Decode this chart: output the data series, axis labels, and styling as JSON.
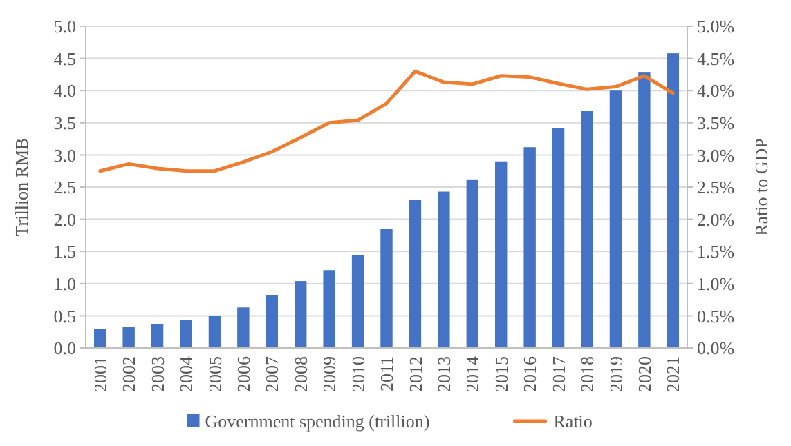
{
  "chart_data": {
    "type": "bar",
    "ylabel": "Trillion RMB",
    "y2label": "Ratio to GDP",
    "categories": [
      "2001",
      "2002",
      "2003",
      "2004",
      "2005",
      "2006",
      "2007",
      "2008",
      "2009",
      "2010",
      "2011",
      "2012",
      "2013",
      "2014",
      "2015",
      "2016",
      "2017",
      "2018",
      "2019",
      "2020",
      "2021"
    ],
    "series": [
      {
        "name": "Government spending (trillion)",
        "color": "#4472c4",
        "values": [
          0.29,
          0.33,
          0.37,
          0.44,
          0.5,
          0.63,
          0.82,
          1.04,
          1.21,
          1.44,
          1.85,
          2.3,
          2.43,
          2.62,
          2.9,
          3.12,
          3.42,
          3.68,
          4.0,
          4.28,
          4.58
        ]
      },
      {
        "name": "Ratio",
        "type": "line",
        "axis": "y2",
        "color": "#ed7d31",
        "values": [
          2.75,
          2.86,
          2.79,
          2.75,
          2.75,
          2.89,
          3.05,
          3.27,
          3.5,
          3.54,
          3.8,
          4.3,
          4.13,
          4.1,
          4.23,
          4.21,
          4.11,
          4.02,
          4.06,
          4.23,
          3.96
        ]
      }
    ],
    "ylim": [
      0,
      5
    ],
    "yticks": [
      {
        "value": 0,
        "label": "0.0"
      },
      {
        "value": 0.5,
        "label": "0.5"
      },
      {
        "value": 1,
        "label": "1.0"
      },
      {
        "value": 1.5,
        "label": "1.5"
      },
      {
        "value": 2,
        "label": "2.0"
      },
      {
        "value": 2.5,
        "label": "2.5"
      },
      {
        "value": 3,
        "label": "3.0"
      },
      {
        "value": 3.5,
        "label": "3.5"
      },
      {
        "value": 4,
        "label": "4.0"
      },
      {
        "value": 4.5,
        "label": "4.5"
      },
      {
        "value": 5,
        "label": "5.0"
      }
    ],
    "y2lim": [
      0,
      5
    ],
    "y2ticks": [
      {
        "value": 0,
        "label": "0.0%"
      },
      {
        "value": 0.5,
        "label": "0.5%"
      },
      {
        "value": 1,
        "label": "1.0%"
      },
      {
        "value": 1.5,
        "label": "1.5%"
      },
      {
        "value": 2,
        "label": "2.0%"
      },
      {
        "value": 2.5,
        "label": "2.5%"
      },
      {
        "value": 3,
        "label": "3.0%"
      },
      {
        "value": 3.5,
        "label": "3.5%"
      },
      {
        "value": 4,
        "label": "4.0%"
      },
      {
        "value": 4.5,
        "label": "4.5%"
      },
      {
        "value": 5,
        "label": "5.0%"
      }
    ],
    "grid": "y",
    "legend": "bottom",
    "line_style": "solid",
    "marker": "none"
  }
}
